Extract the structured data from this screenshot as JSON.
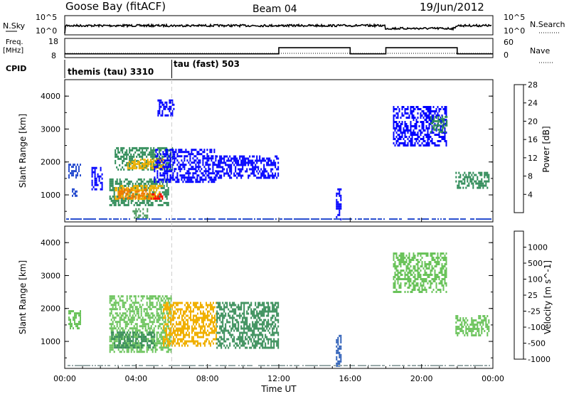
{
  "header": {
    "station": "Goose Bay (fitACF)",
    "beam": "Beam 04",
    "date": "19/Jun/2012"
  },
  "noise_panel": {
    "left_label": "N.Sky",
    "right_label": "N.Search",
    "left_ticks": [
      "10^5",
      "10^0"
    ],
    "right_ticks": [
      "10^5",
      "10^0"
    ]
  },
  "freq_panel": {
    "left_label_1": "Freq.",
    "left_label_2": "[MHz]",
    "left_ticks": [
      "18",
      "8"
    ],
    "right_label": "Nave",
    "right_ticks": [
      "60",
      "0"
    ]
  },
  "cpid_panel": {
    "label": "CPID",
    "segments": [
      {
        "label": "themis (tau) 3310"
      },
      {
        "label": "tau (fast) 503"
      }
    ]
  },
  "chart_data": [
    {
      "type": "heatmap",
      "name": "power",
      "ylabel": "Slant Range [km]",
      "ylim": [
        180,
        4500
      ],
      "y_ticks": [
        1000,
        2000,
        3000,
        4000
      ],
      "colorbar": {
        "label": "Power [dB]",
        "ticks": [
          "4",
          "8",
          "12",
          "16",
          "20",
          "24",
          "28"
        ],
        "colors": [
          "#0000ff",
          "#2a4fd0",
          "#2e8b57",
          "#4a9a5c",
          "#f0b000",
          "#f07800",
          "#ff0000"
        ]
      },
      "regions": [
        {
          "t0": 0.2,
          "t1": 0.9,
          "r0": 1500,
          "r1": 1950,
          "value": 8
        },
        {
          "t0": 0.4,
          "t1": 0.7,
          "r0": 1000,
          "r1": 1200,
          "value": 8
        },
        {
          "t0": 1.5,
          "t1": 2.1,
          "r0": 1200,
          "r1": 1850,
          "value": 4
        },
        {
          "t0": 2.5,
          "t1": 5.8,
          "r0": 700,
          "r1": 1500,
          "value": 12
        },
        {
          "t0": 2.8,
          "t1": 5.5,
          "r0": 850,
          "r1": 1300,
          "value": 20
        },
        {
          "t0": 3.0,
          "t1": 4.8,
          "r0": 900,
          "r1": 1200,
          "value": 24
        },
        {
          "t0": 4.8,
          "t1": 5.5,
          "r0": 900,
          "r1": 1050,
          "value": 28
        },
        {
          "t0": 2.8,
          "t1": 6.0,
          "r0": 1800,
          "r1": 2450,
          "value": 12
        },
        {
          "t0": 3.5,
          "t1": 5.5,
          "r0": 1800,
          "r1": 2100,
          "value": 20
        },
        {
          "t0": 3.8,
          "t1": 4.6,
          "r0": 300,
          "r1": 600,
          "value": 16
        },
        {
          "t0": 5.0,
          "t1": 8.5,
          "r0": 1400,
          "r1": 2400,
          "value": 4
        },
        {
          "t0": 8.5,
          "t1": 12.0,
          "r0": 1500,
          "r1": 2200,
          "value": 4
        },
        {
          "t0": 5.2,
          "t1": 6.1,
          "r0": 3400,
          "r1": 3900,
          "value": 4
        },
        {
          "t0": 18.4,
          "t1": 21.4,
          "r0": 2500,
          "r1": 3700,
          "value": 4
        },
        {
          "t0": 20.5,
          "t1": 21.4,
          "r0": 2900,
          "r1": 3400,
          "value": 12
        },
        {
          "t0": 21.9,
          "t1": 23.8,
          "r0": 1200,
          "r1": 1700,
          "value": 12
        },
        {
          "t0": 15.2,
          "t1": 15.5,
          "r0": 250,
          "r1": 1200,
          "value": 4
        }
      ]
    },
    {
      "type": "heatmap",
      "name": "velocity",
      "ylabel": "Slant Range [km]",
      "ylim": [
        180,
        4500
      ],
      "y_ticks": [
        1000,
        2000,
        3000,
        4000
      ],
      "colorbar": {
        "label": "Velocity [m s^-1]",
        "ticks": [
          "1000",
          "500",
          "100",
          "25",
          "-25",
          "-100",
          "-500",
          "-1000"
        ],
        "colors": [
          "#1e3fb0",
          "#2e5fb8",
          "#3a8f5a",
          "#6ac35a",
          "#c0c0c0",
          "#f0b000",
          "#f07000",
          "#ff0000"
        ]
      },
      "regions": [
        {
          "t0": 0.2,
          "t1": 0.9,
          "r0": 1400,
          "r1": 1950,
          "value": 25
        },
        {
          "t0": 2.5,
          "t1": 6.0,
          "r0": 700,
          "r1": 2400,
          "value": 25
        },
        {
          "t0": 2.6,
          "t1": 5.0,
          "r0": 800,
          "r1": 1300,
          "value": 100
        },
        {
          "t0": 5.5,
          "t1": 8.5,
          "r0": 900,
          "r1": 2200,
          "value": -100
        },
        {
          "t0": 8.5,
          "t1": 12.0,
          "r0": 800,
          "r1": 2200,
          "value": 100
        },
        {
          "t0": 18.4,
          "t1": 21.4,
          "r0": 2500,
          "r1": 3700,
          "value": 25
        },
        {
          "t0": 21.9,
          "t1": 23.8,
          "r0": 1200,
          "r1": 1800,
          "value": 25
        },
        {
          "t0": 15.2,
          "t1": 15.5,
          "r0": 250,
          "r1": 1200,
          "value": 500
        }
      ]
    }
  ],
  "x_axis": {
    "label": "Time UT",
    "ticks": [
      "00:00",
      "04:00",
      "08:00",
      "12:00",
      "16:00",
      "20:00",
      "00:00"
    ],
    "range_hours": [
      0,
      24
    ]
  },
  "freq_series": {
    "t": [
      0,
      12,
      12,
      16,
      16,
      18,
      18,
      22,
      22,
      24
    ],
    "mhz": [
      10.2,
      10.2,
      13.8,
      13.8,
      10.2,
      10.2,
      13.8,
      13.8,
      10.2,
      10.2
    ]
  },
  "cpid_change_hour": 6
}
